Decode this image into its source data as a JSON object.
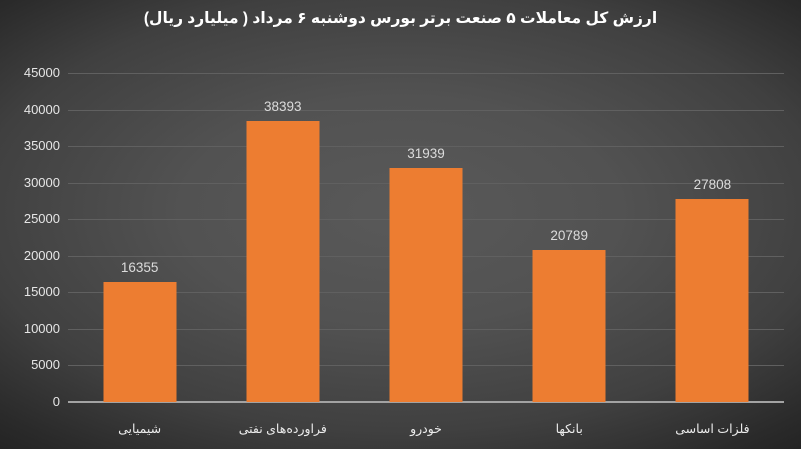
{
  "colors": {
    "background_center": "#595959",
    "background_edge": "#222222",
    "bar_fill": "#ed7d31",
    "gridline": "#606060",
    "axis_line": "#a3a3a3",
    "title_text": "#ffffff",
    "value_label_text": "#dcdcdc",
    "tick_label_text": "#e6e6e6"
  },
  "chart_data": {
    "type": "bar",
    "title": "ارزش کل معاملات ۵ صنعت برتر بورس دوشنبه ۶ مرداد ( میلیارد ریال)",
    "categories": [
      "شیمیایی",
      "فراورده‌های نفتی",
      "خودرو",
      "بانکها",
      "فلزات اساسی"
    ],
    "values": [
      16355,
      38393,
      31939,
      20789,
      27808
    ],
    "data_labels": [
      "16355",
      "38393",
      "31939",
      "20789",
      "27808"
    ],
    "ytick_labels": [
      "0",
      "5000",
      "10000",
      "15000",
      "20000",
      "25000",
      "30000",
      "35000",
      "40000",
      "45000"
    ],
    "yticks": [
      0,
      5000,
      10000,
      15000,
      20000,
      25000,
      30000,
      35000,
      40000,
      45000
    ],
    "ylim": [
      0,
      45000
    ],
    "xlabel": "",
    "ylabel": "",
    "grid": true,
    "legend": false,
    "text_direction": "rtl"
  }
}
